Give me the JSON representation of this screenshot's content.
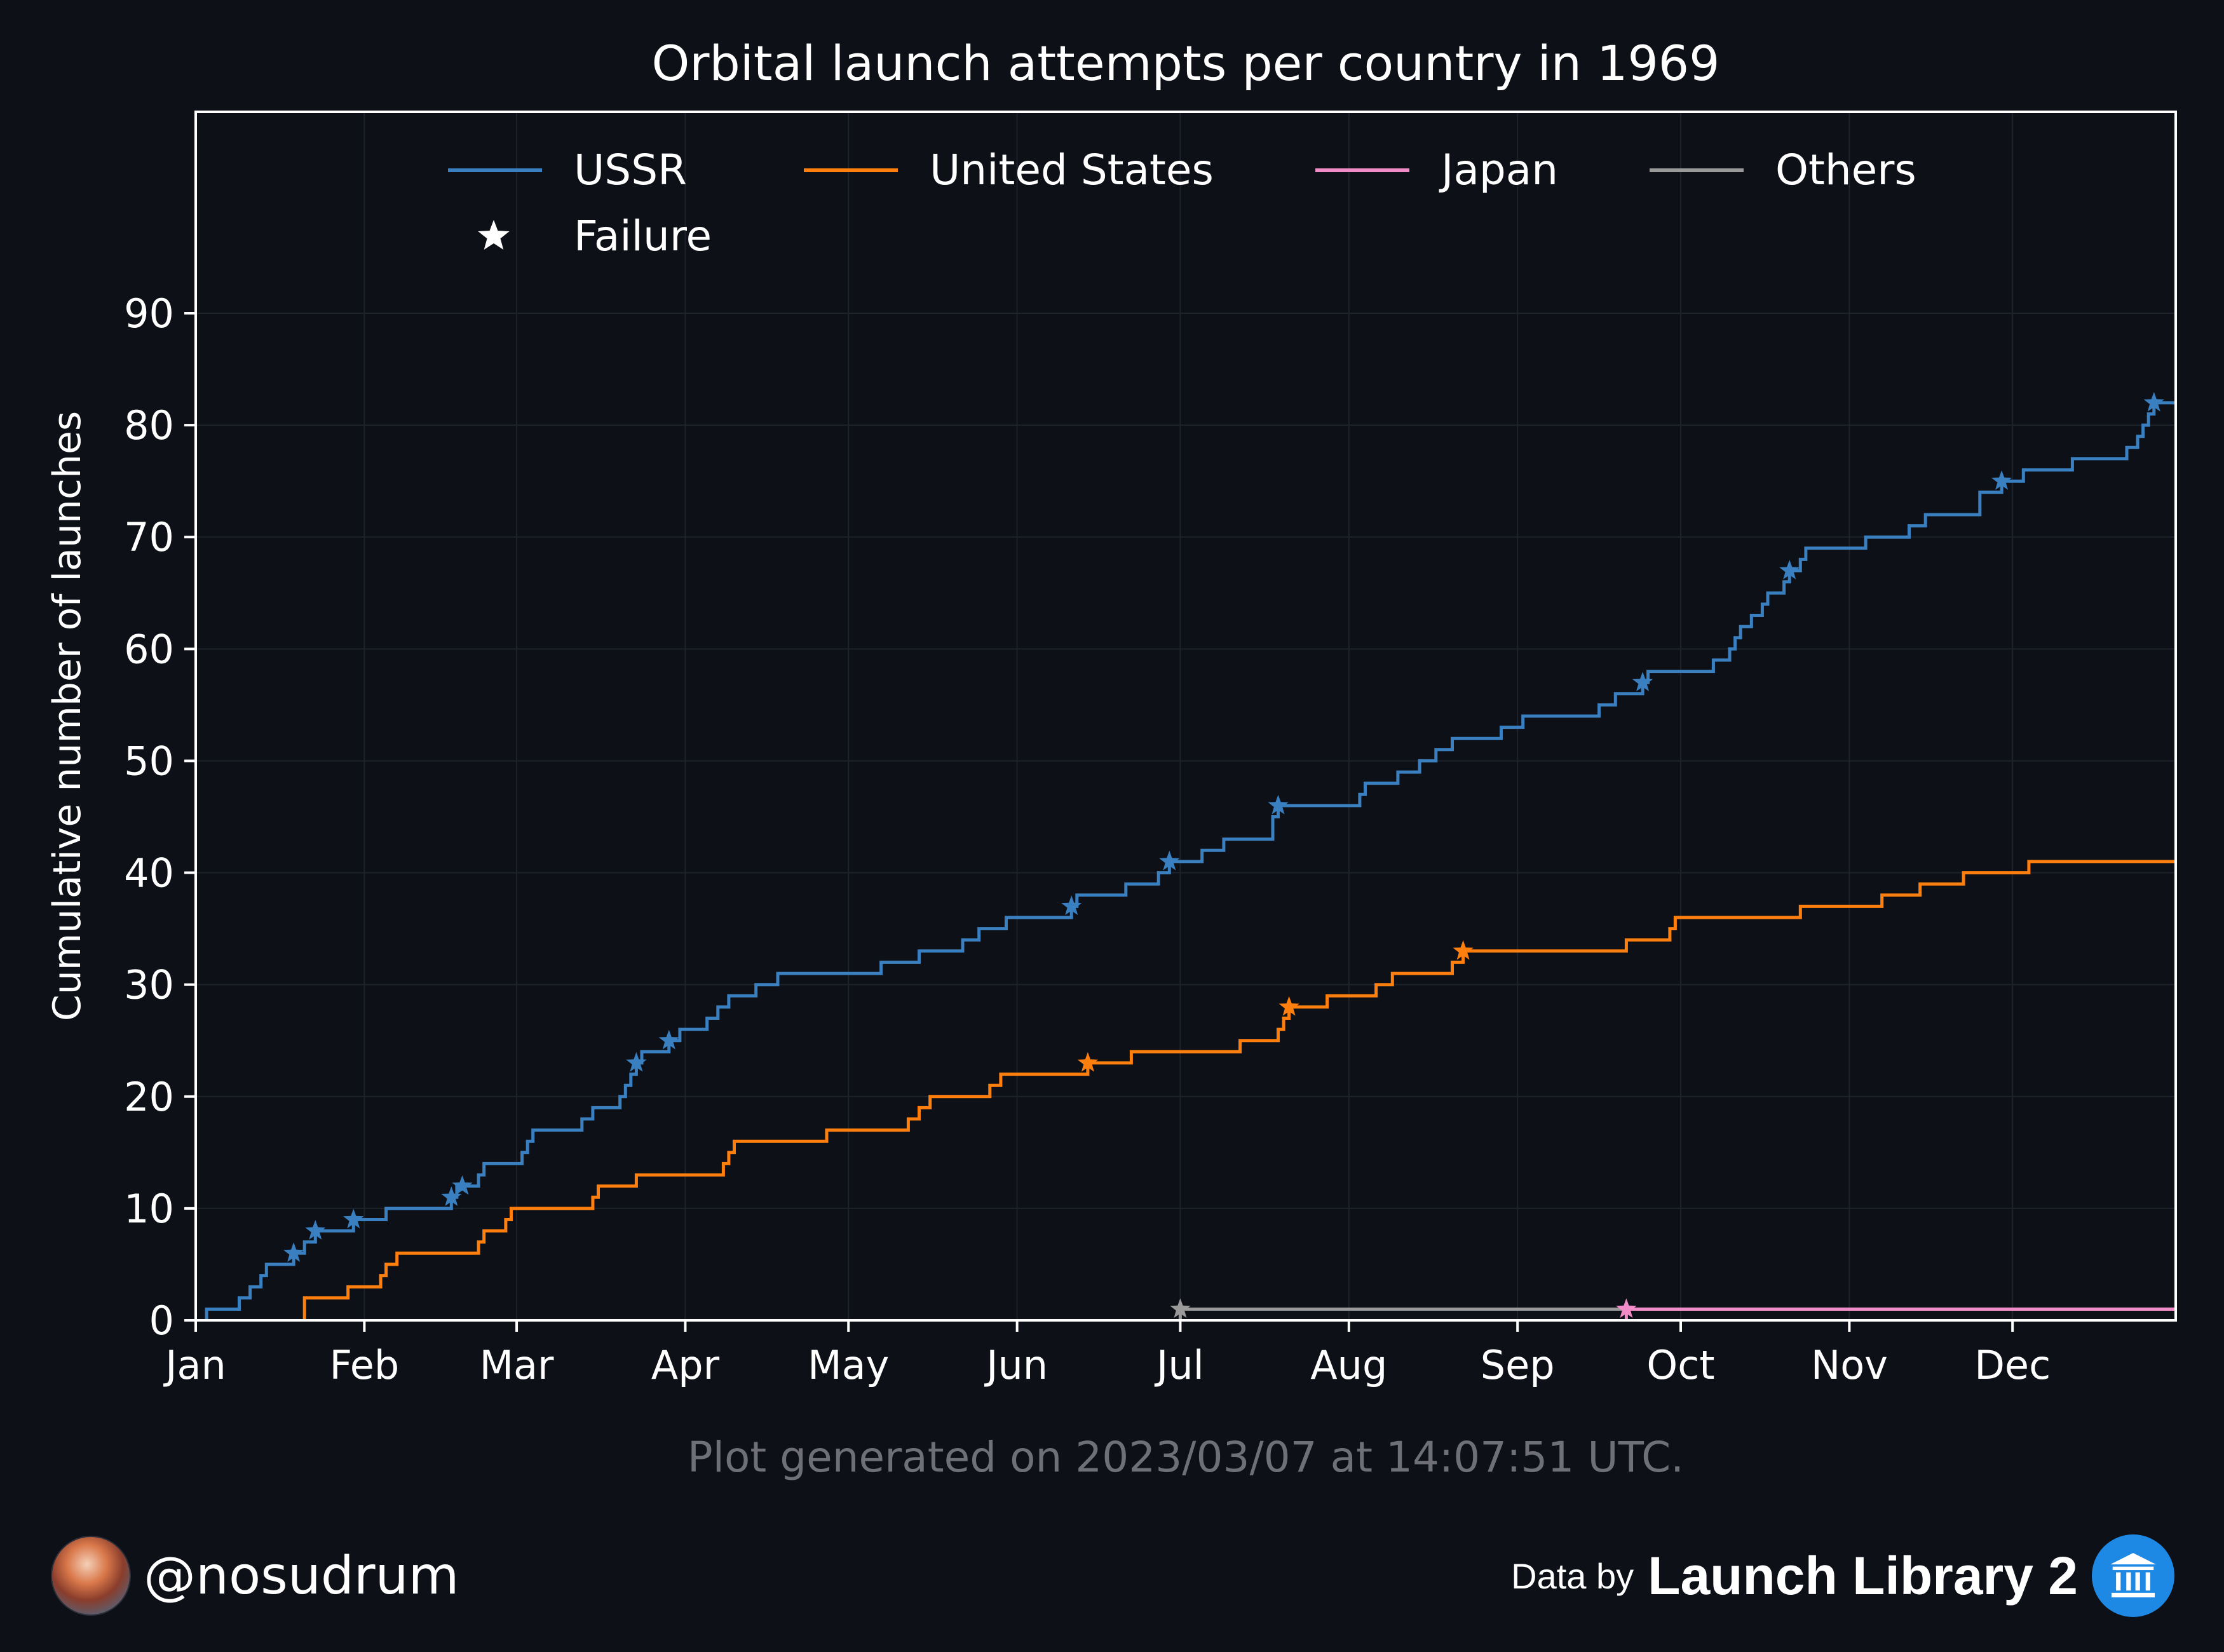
{
  "chart_data": {
    "type": "line",
    "step": true,
    "title": "Orbital launch attempts per country in 1969",
    "xlabel": "",
    "ylabel": "Cumulative number of launches",
    "xlim": [
      1,
      365
    ],
    "ylim": [
      0,
      108
    ],
    "x_ticks": [
      {
        "label": "Jan",
        "day": 1
      },
      {
        "label": "Feb",
        "day": 32
      },
      {
        "label": "Mar",
        "day": 60
      },
      {
        "label": "Apr",
        "day": 91
      },
      {
        "label": "May",
        "day": 121
      },
      {
        "label": "Jun",
        "day": 152
      },
      {
        "label": "Jul",
        "day": 182
      },
      {
        "label": "Aug",
        "day": 213
      },
      {
        "label": "Sep",
        "day": 244
      },
      {
        "label": "Oct",
        "day": 274
      },
      {
        "label": "Nov",
        "day": 305
      },
      {
        "label": "Dec",
        "day": 335
      }
    ],
    "y_ticks": [
      0,
      10,
      20,
      30,
      40,
      50,
      60,
      70,
      80,
      90
    ],
    "grid": true,
    "legend": {
      "placement": "top",
      "failure_label": "Failure"
    },
    "series": [
      {
        "name": "USSR",
        "color": "#3a80c0",
        "steps": [
          [
            3,
            1
          ],
          [
            9,
            2
          ],
          [
            11,
            3
          ],
          [
            13,
            4
          ],
          [
            14,
            5
          ],
          [
            19,
            6
          ],
          [
            21,
            7
          ],
          [
            23,
            8
          ],
          [
            30,
            9
          ],
          [
            36,
            10
          ],
          [
            48,
            11
          ],
          [
            49,
            12
          ],
          [
            53,
            13
          ],
          [
            54,
            14
          ],
          [
            61,
            15
          ],
          [
            62,
            16
          ],
          [
            63,
            17
          ],
          [
            72,
            18
          ],
          [
            74,
            19
          ],
          [
            79,
            20
          ],
          [
            80,
            21
          ],
          [
            81,
            22
          ],
          [
            82,
            23
          ],
          [
            83,
            24
          ],
          [
            88,
            25
          ],
          [
            90,
            26
          ],
          [
            95,
            27
          ],
          [
            97,
            28
          ],
          [
            99,
            29
          ],
          [
            104,
            30
          ],
          [
            108,
            31
          ],
          [
            127,
            32
          ],
          [
            134,
            33
          ],
          [
            142,
            34
          ],
          [
            145,
            35
          ],
          [
            150,
            36
          ],
          [
            162,
            37
          ],
          [
            163,
            38
          ],
          [
            172,
            39
          ],
          [
            178,
            40
          ],
          [
            180,
            41
          ],
          [
            186,
            42
          ],
          [
            190,
            43
          ],
          [
            199,
            44
          ],
          [
            199,
            45
          ],
          [
            200,
            46
          ],
          [
            215,
            47
          ],
          [
            216,
            48
          ],
          [
            222,
            49
          ],
          [
            226,
            50
          ],
          [
            229,
            51
          ],
          [
            232,
            52
          ],
          [
            241,
            53
          ],
          [
            245,
            54
          ],
          [
            259,
            55
          ],
          [
            262,
            56
          ],
          [
            267,
            57
          ],
          [
            268,
            58
          ],
          [
            280,
            59
          ],
          [
            283,
            60
          ],
          [
            284,
            61
          ],
          [
            285,
            62
          ],
          [
            287,
            63
          ],
          [
            289,
            64
          ],
          [
            290,
            65
          ],
          [
            293,
            66
          ],
          [
            294,
            67
          ],
          [
            296,
            68
          ],
          [
            297,
            69
          ],
          [
            308,
            70
          ],
          [
            316,
            71
          ],
          [
            319,
            72
          ],
          [
            329,
            73
          ],
          [
            329,
            74
          ],
          [
            333,
            75
          ],
          [
            337,
            76
          ],
          [
            346,
            77
          ],
          [
            356,
            78
          ],
          [
            358,
            79
          ],
          [
            359,
            80
          ],
          [
            360,
            81
          ],
          [
            361,
            82
          ]
        ],
        "failures": [
          [
            19,
            6
          ],
          [
            23,
            8
          ],
          [
            30,
            9
          ],
          [
            48,
            11
          ],
          [
            50,
            12
          ],
          [
            82,
            23
          ],
          [
            88,
            25
          ],
          [
            162,
            37
          ],
          [
            180,
            41
          ],
          [
            200,
            46
          ],
          [
            267,
            57
          ],
          [
            294,
            67
          ],
          [
            333,
            75
          ],
          [
            361,
            82
          ]
        ]
      },
      {
        "name": "United States",
        "color": "#ff7f0e",
        "steps": [
          [
            21,
            2
          ],
          [
            29,
            3
          ],
          [
            35,
            4
          ],
          [
            36,
            5
          ],
          [
            38,
            6
          ],
          [
            53,
            7
          ],
          [
            54,
            8
          ],
          [
            58,
            9
          ],
          [
            59,
            10
          ],
          [
            74,
            11
          ],
          [
            75,
            12
          ],
          [
            82,
            13
          ],
          [
            98,
            14
          ],
          [
            99,
            15
          ],
          [
            100,
            16
          ],
          [
            117,
            17
          ],
          [
            132,
            18
          ],
          [
            134,
            19
          ],
          [
            136,
            20
          ],
          [
            147,
            21
          ],
          [
            149,
            22
          ],
          [
            165,
            23
          ],
          [
            173,
            24
          ],
          [
            193,
            25
          ],
          [
            200,
            26
          ],
          [
            201,
            27
          ],
          [
            202,
            28
          ],
          [
            209,
            29
          ],
          [
            218,
            30
          ],
          [
            221,
            31
          ],
          [
            232,
            32
          ],
          [
            234,
            33
          ],
          [
            264,
            34
          ],
          [
            272,
            35
          ],
          [
            273,
            36
          ],
          [
            296,
            37
          ],
          [
            311,
            38
          ],
          [
            318,
            39
          ],
          [
            326,
            40
          ],
          [
            338,
            41
          ]
        ],
        "failures": [
          [
            165,
            23
          ],
          [
            202,
            28
          ],
          [
            234,
            33
          ]
        ]
      },
      {
        "name": "Japan",
        "color": "#f28cc8",
        "steps": [
          [
            264,
            1
          ]
        ],
        "failures": [
          [
            264,
            1
          ]
        ]
      },
      {
        "name": "Others",
        "color": "#9a9a9a",
        "steps": [
          [
            182,
            1
          ]
        ],
        "failures": [
          [
            182,
            1
          ]
        ]
      }
    ]
  },
  "footer": {
    "generated": "Plot generated on 2023/03/07 at 14:07:51 UTC.",
    "handle": "@nosudrum",
    "data_by": "Data by",
    "source": "Launch Library 2",
    "avatar_icon": "user-avatar-icon",
    "source_icon": "library-building-icon"
  }
}
